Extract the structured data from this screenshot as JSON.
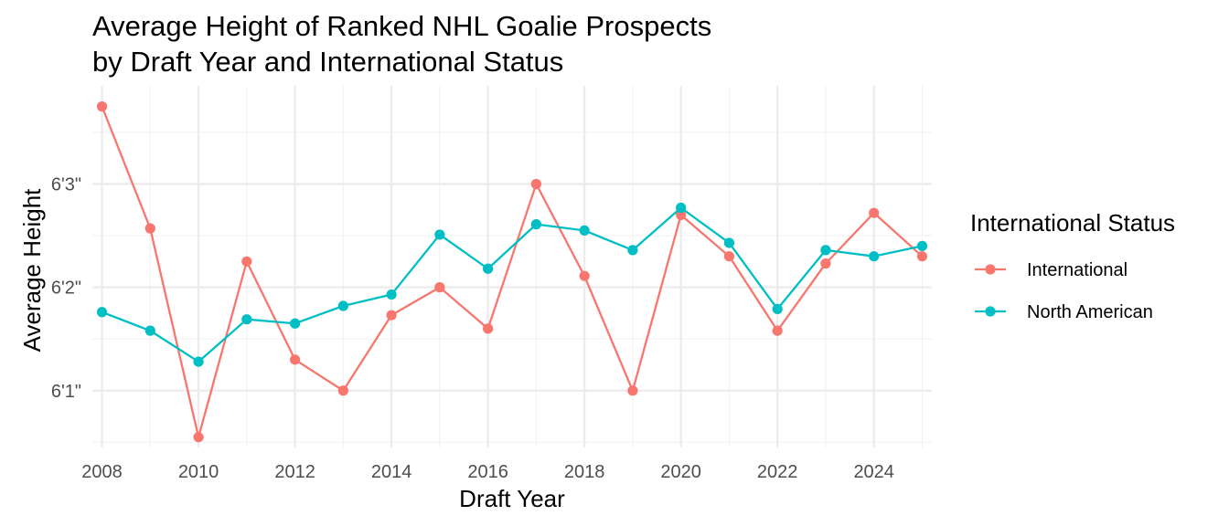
{
  "chart_data": {
    "type": "line",
    "title_lines": [
      "Average Height of Ranked NHL Goalie Prospects",
      "by Draft Year and International Status"
    ],
    "xlabel": "Draft Year",
    "ylabel": "Average Height",
    "xlim": [
      2007.8,
      2025.2
    ],
    "ylim": [
      72.45,
      75.95
    ],
    "x_ticks": [
      2008,
      2010,
      2012,
      2014,
      2016,
      2018,
      2020,
      2022,
      2024
    ],
    "y_ticks": [
      {
        "value": 73,
        "label": "6'1\""
      },
      {
        "value": 74,
        "label": "6'2\""
      },
      {
        "value": 75,
        "label": "6'3\""
      }
    ],
    "grid": true,
    "legend": {
      "title": "International Status",
      "position": "right"
    },
    "x": [
      2008,
      2009,
      2010,
      2011,
      2012,
      2013,
      2014,
      2015,
      2016,
      2017,
      2018,
      2019,
      2020,
      2021,
      2022,
      2023,
      2024,
      2025
    ],
    "series": [
      {
        "name": "International",
        "color": "#F8766D",
        "values": [
          75.75,
          74.57,
          72.55,
          74.25,
          73.3,
          73.0,
          73.73,
          74.0,
          73.6,
          75.0,
          74.11,
          73.0,
          74.7,
          74.3,
          73.58,
          74.23,
          74.72,
          74.3
        ]
      },
      {
        "name": "North American",
        "color": "#00BFC4",
        "values": [
          73.76,
          73.58,
          73.28,
          73.69,
          73.65,
          73.82,
          73.93,
          74.51,
          74.18,
          74.61,
          74.55,
          74.36,
          74.77,
          74.43,
          73.79,
          74.36,
          74.3,
          74.4
        ]
      }
    ]
  }
}
